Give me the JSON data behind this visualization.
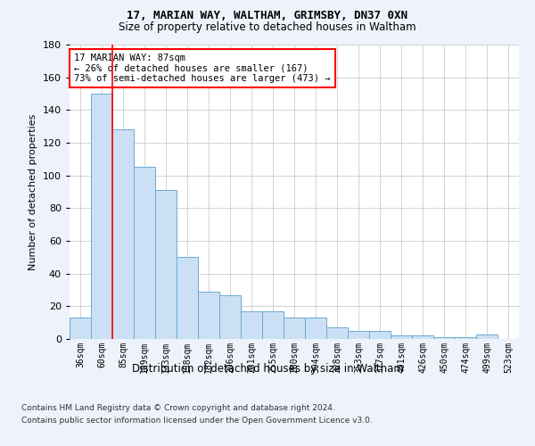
{
  "title1": "17, MARIAN WAY, WALTHAM, GRIMSBY, DN37 0XN",
  "title2": "Size of property relative to detached houses in Waltham",
  "xlabel": "Distribution of detached houses by size in Waltham",
  "ylabel": "Number of detached properties",
  "categories": [
    "36sqm",
    "60sqm",
    "85sqm",
    "109sqm",
    "133sqm",
    "158sqm",
    "182sqm",
    "206sqm",
    "231sqm",
    "255sqm",
    "280sqm",
    "304sqm",
    "328sqm",
    "353sqm",
    "377sqm",
    "401sqm",
    "426sqm",
    "450sqm",
    "474sqm",
    "499sqm",
    "523sqm"
  ],
  "values": [
    13,
    150,
    128,
    105,
    91,
    50,
    29,
    27,
    17,
    17,
    13,
    13,
    7,
    5,
    5,
    2,
    2,
    1,
    1,
    3,
    0
  ],
  "bar_color": "#cce0f5",
  "bar_edge_color": "#6aaad4",
  "annotation_text": "17 MARIAN WAY: 87sqm\n← 26% of detached houses are smaller (167)\n73% of semi-detached houses are larger (473) →",
  "annotation_box_color": "white",
  "annotation_box_edge_color": "red",
  "red_line_x": 2,
  "ylim": [
    0,
    180
  ],
  "yticks": [
    0,
    20,
    40,
    60,
    80,
    100,
    120,
    140,
    160,
    180
  ],
  "footer1": "Contains HM Land Registry data © Crown copyright and database right 2024.",
  "footer2": "Contains public sector information licensed under the Open Government Licence v3.0.",
  "background_color": "#eef2fa",
  "plot_bg_color": "#ffffff",
  "grid_color": "#cccccc"
}
